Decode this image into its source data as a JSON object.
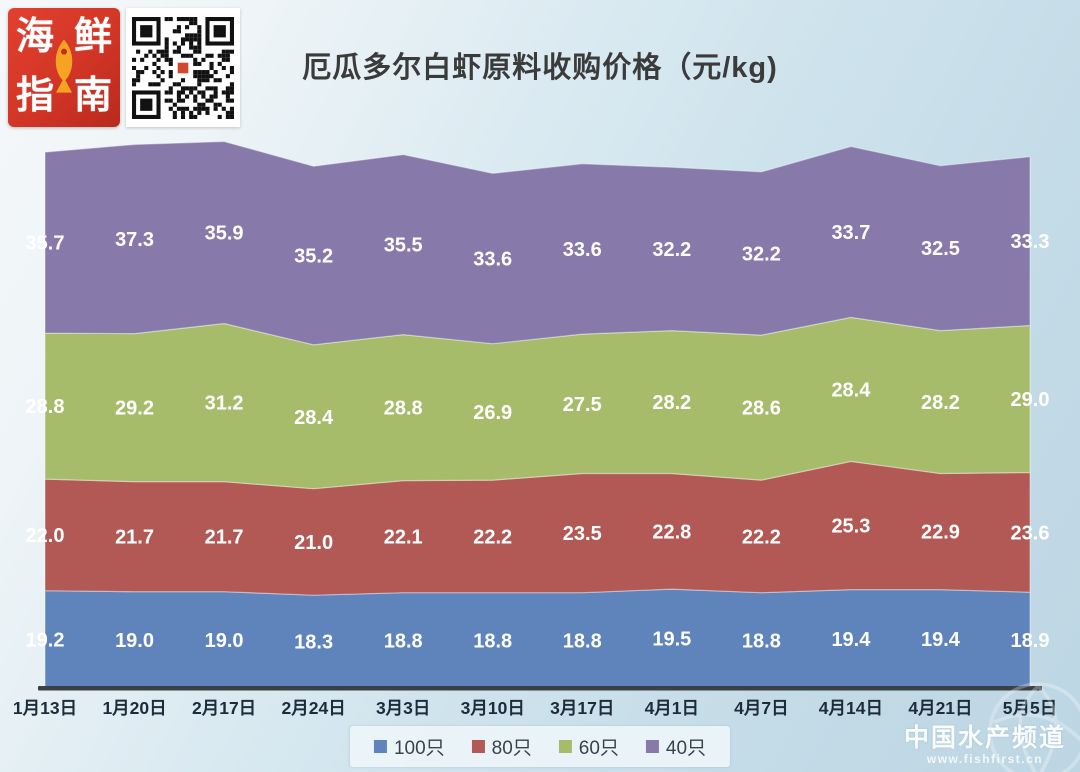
{
  "header": {
    "title": "厄瓜多尔白虾原料收购价格（元/kg)"
  },
  "logo": {
    "name": "海鲜指南",
    "chars": [
      "海",
      "鲜",
      "指",
      "南"
    ],
    "brand_red": "#d23526",
    "fish_orange": "#f6a324"
  },
  "qr": {
    "alt": "二维码"
  },
  "chart_data": {
    "type": "area",
    "stacked": true,
    "title": "厄瓜多尔白虾原料收购价格（元/kg)",
    "categories": [
      "1月13日",
      "1月20日",
      "2月17日",
      "2月24日",
      "3月3日",
      "3月10日",
      "3月17日",
      "4月1日",
      "4月7日",
      "4月14日",
      "4月21日",
      "5月5日"
    ],
    "series": [
      {
        "name": "100只",
        "color": "#5f84bb",
        "values": [
          19.2,
          19.0,
          19.0,
          18.3,
          18.8,
          18.8,
          18.8,
          19.5,
          18.8,
          19.4,
          19.4,
          18.9
        ]
      },
      {
        "name": "80只",
        "color": "#b25955",
        "values": [
          22.0,
          21.7,
          21.7,
          21.0,
          22.1,
          22.2,
          23.5,
          22.8,
          22.2,
          25.3,
          22.9,
          23.6
        ]
      },
      {
        "name": "60只",
        "color": "#a6bc6a",
        "values": [
          28.8,
          29.2,
          31.2,
          28.4,
          28.8,
          26.9,
          27.5,
          28.2,
          28.6,
          28.4,
          28.2,
          29.0
        ]
      },
      {
        "name": "40只",
        "color": "#877aab",
        "values": [
          35.7,
          37.3,
          35.9,
          35.2,
          35.5,
          33.6,
          33.6,
          32.2,
          32.2,
          33.7,
          32.5,
          33.3
        ]
      }
    ],
    "data_labels": true,
    "grid": false,
    "legend_position": "bottom",
    "ylim": [
      0,
      110
    ],
    "axis_color": "#3b4046"
  },
  "watermark": {
    "line1": "中国水产频道",
    "line2": "www.fishfirst.cn"
  }
}
